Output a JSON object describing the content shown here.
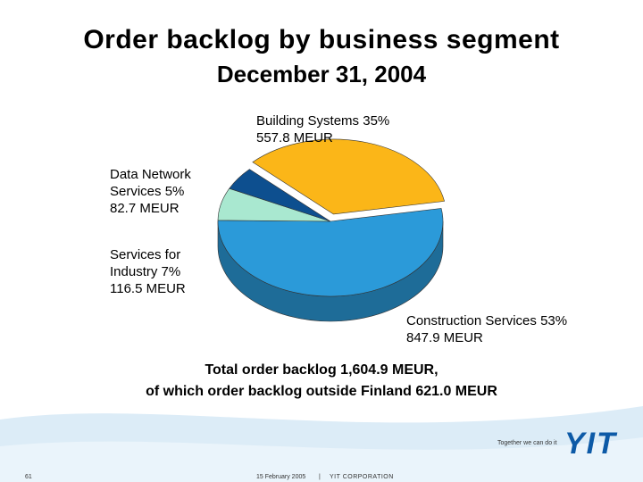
{
  "chart_data": {
    "type": "pie",
    "title": "Order backlog by business segment",
    "subtitle": "December 31, 2004",
    "categories": [
      "Construction Services",
      "Services for Industry",
      "Data Network Services",
      "Building Systems"
    ],
    "values": [
      53,
      7,
      5,
      35
    ],
    "value_labels": [
      "53%",
      "7%",
      "5%",
      "35%"
    ],
    "amounts": [
      847.9,
      116.5,
      82.7,
      557.8
    ],
    "amount_labels": [
      "847.9 MEUR",
      "116.5 MEUR",
      "82.7 MEUR",
      "557.8 MEUR"
    ],
    "colors": [
      "#2b9ad9",
      "#a9e8d0",
      "#0d4f8f",
      "#fbb618"
    ],
    "notes": [
      "Total order backlog 1,604.9 MEUR,",
      "of which order backlog outside Finland 621.0 MEUR"
    ]
  },
  "footer": {
    "slogan": "Together we can do it",
    "logo": "YIT",
    "page": "61",
    "date": "15 February 2005",
    "separator": "|",
    "company": "YIT CORPORATION"
  }
}
